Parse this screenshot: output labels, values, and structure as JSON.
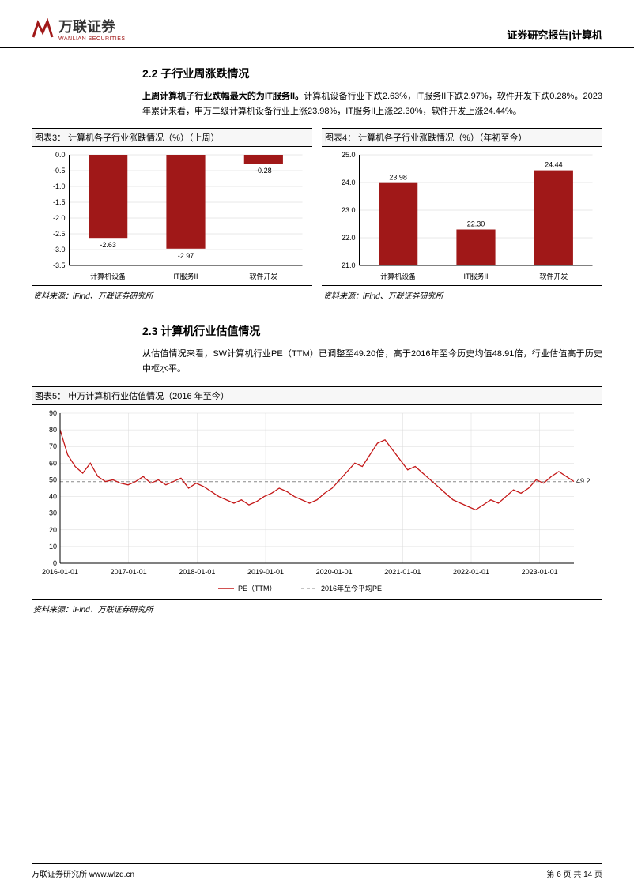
{
  "header": {
    "logo_text": "万联证券",
    "logo_sub": "WANLIAN SECURITIES",
    "right_text": "证券研究报告|计算机"
  },
  "section22": {
    "title": "2.2 子行业周涨跌情况",
    "lead": "上周计算机子行业跌幅最大的为IT服务II。",
    "body": "计算机设备行业下跌2.63%，IT服务II下跌2.97%，软件开发下跌0.28%。2023年累计来看，申万二级计算机设备行业上涨23.98%，IT服务II上涨22.30%，软件开发上涨24.44%。"
  },
  "chart3": {
    "title": "图表3：  计算机各子行业涨跌情况（%）（上周）",
    "type": "bar",
    "categories": [
      "计算机设备",
      "IT服务II",
      "软件开发"
    ],
    "values": [
      -2.63,
      -2.97,
      -0.28
    ],
    "bar_color": "#a01818",
    "axis_color": "#000",
    "grid_color": "#d0d0d0",
    "ylim": [
      -3.5,
      0
    ],
    "ytick_step": 0.5,
    "label_fontsize": 9,
    "bar_width": 0.5,
    "source": "资料来源：iFind、万联证券研究所"
  },
  "chart4": {
    "title": "图表4：  计算机各子行业涨跌情况（%）（年初至今）",
    "type": "bar",
    "categories": [
      "计算机设备",
      "IT服务II",
      "软件开发"
    ],
    "values": [
      23.98,
      22.3,
      24.44
    ],
    "bar_color": "#a01818",
    "axis_color": "#000",
    "grid_color": "#d0d0d0",
    "ylim": [
      21,
      25
    ],
    "ytick_step": 1,
    "label_fontsize": 9,
    "bar_width": 0.5,
    "source": "资料来源：iFind、万联证券研究所"
  },
  "section23": {
    "title": "2.3 计算机行业估值情况",
    "body": "从估值情况来看，SW计算机行业PE（TTM）已调整至49.20倍，高于2016年至今历史均值48.91倍，行业估值高于历史中枢水平。"
  },
  "chart5": {
    "title": "图表5：  申万计算机行业估值情况（2016 年至今）",
    "type": "line",
    "x_labels": [
      "2016-01-01",
      "2017-01-01",
      "2018-01-01",
      "2019-01-01",
      "2020-01-01",
      "2021-01-01",
      "2022-01-01",
      "2023-01-01"
    ],
    "ylim": [
      0,
      90
    ],
    "ytick_step": 10,
    "line_color": "#c41818",
    "avg_line_color": "#888",
    "avg_value": 48.91,
    "end_value": 49.2,
    "end_label": "49.2",
    "legend": [
      "PE（TTM）",
      "2016年至今平均PE"
    ],
    "series": [
      80,
      65,
      58,
      54,
      60,
      52,
      49,
      50,
      48,
      47,
      49,
      52,
      48,
      50,
      47,
      49,
      51,
      45,
      48,
      46,
      43,
      40,
      38,
      36,
      38,
      35,
      37,
      40,
      42,
      45,
      43,
      40,
      38,
      36,
      38,
      42,
      45,
      50,
      55,
      60,
      58,
      65,
      72,
      74,
      68,
      62,
      56,
      58,
      54,
      50,
      46,
      42,
      38,
      36,
      34,
      32,
      35,
      38,
      36,
      40,
      44,
      42,
      45,
      50,
      48,
      52,
      55,
      52,
      49
    ],
    "grid_color": "#d9d9d9",
    "label_fontsize": 9,
    "source": "资料来源：iFind、万联证券研究所"
  },
  "footer": {
    "left": "万联证券研究所  www.wlzq.cn",
    "right": "第 6 页 共 14 页"
  }
}
